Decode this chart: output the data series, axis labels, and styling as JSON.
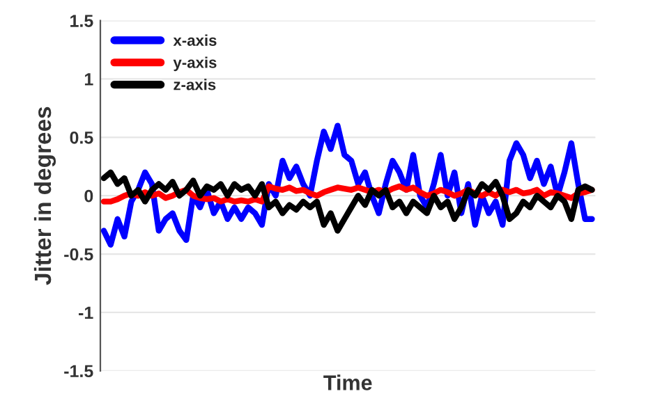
{
  "chart_data": {
    "type": "line",
    "xlabel": "Time",
    "ylabel": "Jitter in degrees",
    "categories": [
      null,
      null,
      null,
      null,
      null,
      null,
      null,
      null,
      null,
      null,
      null,
      null,
      null,
      null,
      null,
      null,
      null,
      null,
      null,
      null,
      null,
      null,
      null,
      null,
      null,
      null,
      null,
      null,
      null,
      null,
      null,
      null,
      null,
      null,
      null,
      null,
      null,
      null,
      null,
      null,
      null,
      null,
      null,
      null,
      null,
      null,
      null,
      null,
      null,
      null,
      null,
      null,
      null,
      null,
      null,
      null,
      null,
      null,
      null,
      null,
      null,
      null,
      null,
      null,
      null,
      null,
      null,
      null,
      null,
      null,
      null,
      null
    ],
    "series": [
      {
        "name": "x-axis",
        "color": "#0000ff",
        "values": [
          -0.3,
          -0.42,
          -0.2,
          -0.35,
          -0.05,
          0.05,
          0.2,
          0.1,
          -0.3,
          -0.2,
          -0.15,
          -0.3,
          -0.38,
          0.0,
          -0.1,
          0.05,
          -0.15,
          -0.05,
          -0.2,
          -0.1,
          -0.2,
          -0.1,
          -0.15,
          -0.25,
          0.1,
          0.0,
          0.3,
          0.15,
          0.25,
          0.1,
          0.0,
          0.3,
          0.55,
          0.4,
          0.6,
          0.35,
          0.3,
          0.1,
          0.2,
          0.0,
          -0.15,
          0.1,
          0.3,
          0.2,
          0.05,
          0.35,
          0.0,
          -0.1,
          0.1,
          0.35,
          0.0,
          0.2,
          -0.15,
          0.1,
          -0.25,
          0.0,
          -0.15,
          -0.05,
          -0.25,
          0.3,
          0.45,
          0.35,
          0.15,
          0.3,
          0.1,
          0.25,
          0.0,
          0.2,
          0.45,
          0.1,
          -0.2,
          -0.2
        ]
      },
      {
        "name": "y-axis",
        "color": "#ff0000",
        "values": [
          -0.05,
          -0.05,
          -0.03,
          0.0,
          0.02,
          0.0,
          0.03,
          0.0,
          0.02,
          -0.02,
          0.0,
          0.03,
          0.05,
          0.0,
          -0.02,
          -0.03,
          -0.02,
          -0.05,
          -0.03,
          -0.05,
          -0.04,
          -0.05,
          -0.03,
          -0.05,
          0.08,
          0.06,
          0.05,
          0.07,
          0.04,
          0.05,
          0.02,
          0.0,
          0.03,
          0.05,
          0.07,
          0.06,
          0.05,
          0.07,
          0.05,
          0.03,
          0.05,
          0.03,
          0.06,
          0.08,
          0.05,
          0.07,
          0.03,
          0.0,
          0.02,
          0.05,
          0.03,
          0.0,
          0.02,
          0.05,
          0.02,
          0.0,
          0.03,
          0.0,
          0.05,
          0.03,
          0.05,
          0.02,
          0.03,
          0.05,
          0.0,
          0.03,
          0.02,
          0.0,
          -0.02,
          0.02,
          0.03,
          0.05
        ]
      },
      {
        "name": "z-axis",
        "color": "#000000",
        "values": [
          0.15,
          0.2,
          0.1,
          0.15,
          0.0,
          0.05,
          -0.05,
          0.05,
          0.1,
          0.05,
          0.12,
          0.0,
          0.05,
          0.13,
          0.0,
          0.08,
          0.05,
          0.1,
          0.0,
          0.1,
          0.05,
          0.08,
          0.0,
          0.1,
          -0.1,
          -0.05,
          -0.15,
          -0.08,
          -0.12,
          -0.05,
          -0.1,
          -0.05,
          -0.25,
          -0.15,
          -0.3,
          -0.2,
          -0.1,
          0.0,
          -0.08,
          0.05,
          0.0,
          0.05,
          -0.1,
          -0.05,
          -0.15,
          -0.05,
          -0.1,
          -0.15,
          0.0,
          -0.1,
          -0.05,
          -0.2,
          -0.1,
          0.05,
          0.0,
          0.1,
          0.05,
          0.12,
          0.0,
          -0.2,
          -0.15,
          -0.05,
          -0.1,
          0.0,
          -0.05,
          -0.1,
          0.0,
          -0.05,
          -0.2,
          0.05,
          0.08,
          0.05
        ]
      }
    ],
    "ylim": [
      -1.5,
      1.5
    ],
    "yticks": [
      -1.5,
      -1,
      -0.5,
      0,
      0.5,
      1,
      1.5
    ],
    "grid": "y",
    "legend": "top left",
    "tick_labels": "y",
    "line_style": "solid"
  }
}
